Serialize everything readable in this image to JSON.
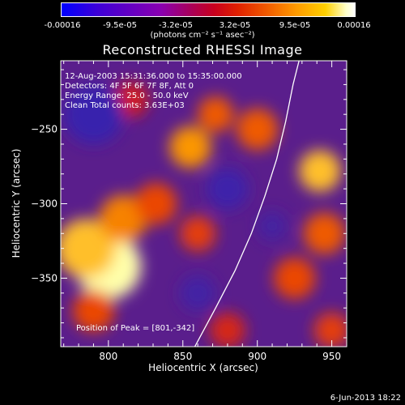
{
  "colorbar": {
    "ticks": [
      "-0.00016",
      "-9.5e-05",
      "-3.2e-05",
      "3.2e-05",
      "9.5e-05",
      "0.00016"
    ],
    "unit": "(photons cm⁻² s⁻¹ asec⁻²)"
  },
  "chart_data": {
    "type": "heatmap",
    "title": "Reconstructed RHESSI Image",
    "xlabel": "Heliocentric X (arcsec)",
    "ylabel": "Heliocentric Y (arcsec)",
    "xlim": [
      768,
      960
    ],
    "ylim": [
      -396,
      -204
    ],
    "xticks": [
      800,
      850,
      900,
      950
    ],
    "yticks": [
      -250,
      -300,
      -350
    ],
    "colorbar_range": [
      -0.00016,
      0.00016
    ],
    "info_lines": [
      "12-Aug-2003 15:31:36.000 to 15:35:00.000",
      "Detectors: 4F 5F 6F 7F 8F, Att 0",
      "Energy Range: 25.0 - 50.0 keV",
      "Clean    Total counts: 3.63E+03"
    ],
    "peak_label": "Position of Peak = [801,-342]",
    "peak_position": [
      801,
      -342
    ],
    "limb_curve": [
      [
        858,
        -396
      ],
      [
        872,
        -370
      ],
      [
        885,
        -345
      ],
      [
        896,
        -320
      ],
      [
        905,
        -295
      ],
      [
        913,
        -270
      ],
      [
        919,
        -245
      ],
      [
        924,
        -220
      ],
      [
        928,
        -204
      ]
    ],
    "blobs": [
      {
        "x": 800,
        "y": -342,
        "v": 1.0,
        "r": 22
      },
      {
        "x": 785,
        "y": -330,
        "v": 0.85,
        "r": 20
      },
      {
        "x": 810,
        "y": -310,
        "v": 0.7,
        "r": 16
      },
      {
        "x": 790,
        "y": -372,
        "v": 0.55,
        "r": 14
      },
      {
        "x": 855,
        "y": -262,
        "v": 0.75,
        "r": 14
      },
      {
        "x": 872,
        "y": -240,
        "v": 0.6,
        "r": 12
      },
      {
        "x": 832,
        "y": -300,
        "v": 0.55,
        "r": 14
      },
      {
        "x": 860,
        "y": -320,
        "v": 0.5,
        "r": 12
      },
      {
        "x": 900,
        "y": -250,
        "v": 0.6,
        "r": 14
      },
      {
        "x": 942,
        "y": -278,
        "v": 0.85,
        "r": 14
      },
      {
        "x": 945,
        "y": -320,
        "v": 0.6,
        "r": 14
      },
      {
        "x": 925,
        "y": -350,
        "v": 0.55,
        "r": 14
      },
      {
        "x": 950,
        "y": -385,
        "v": 0.5,
        "r": 12
      },
      {
        "x": 880,
        "y": -385,
        "v": 0.4,
        "r": 12
      },
      {
        "x": 815,
        "y": -230,
        "v": 0.35,
        "r": 12
      },
      {
        "x": 790,
        "y": -240,
        "v": -0.55,
        "r": 20
      },
      {
        "x": 880,
        "y": -290,
        "v": -0.5,
        "r": 14
      },
      {
        "x": 860,
        "y": -360,
        "v": -0.4,
        "r": 12
      },
      {
        "x": 910,
        "y": -315,
        "v": -0.35,
        "r": 10
      }
    ]
  },
  "footer": {
    "date": "6-Jun-2013 18:22"
  }
}
